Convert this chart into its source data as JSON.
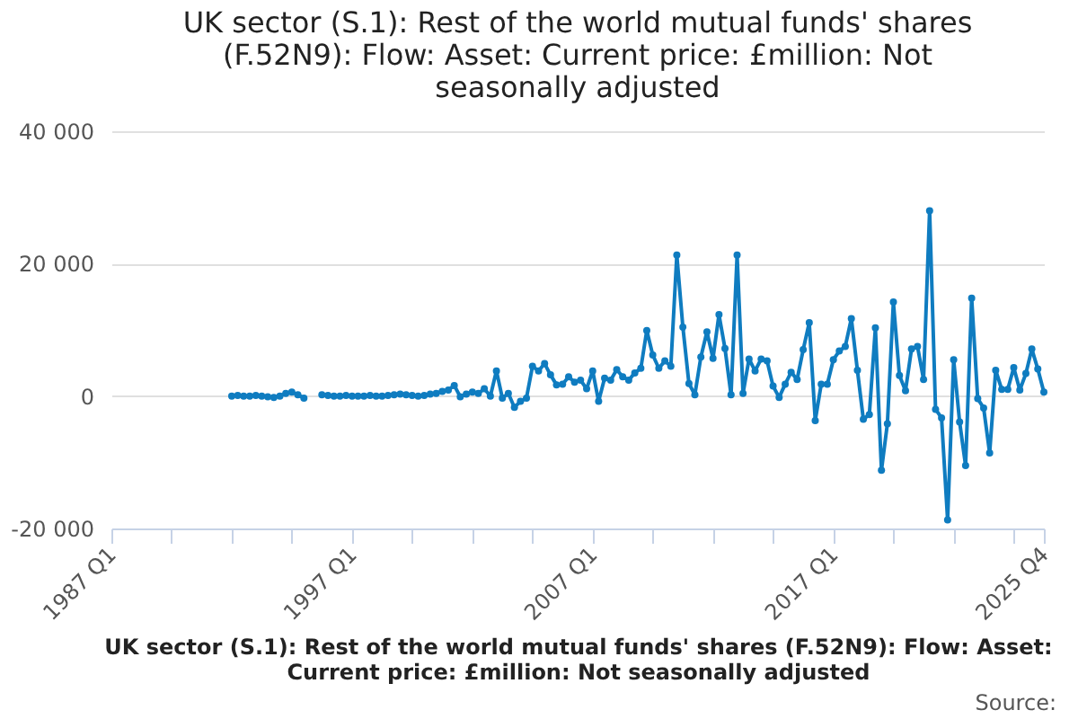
{
  "chart_data": {
    "type": "line",
    "title": "UK sector (S.1): Rest of the world mutual funds' shares (F.52N9): Flow: Asset: Current price: £million: Not seasonally adjusted",
    "xlabel": "UK sector (S.1): Rest of the world mutual funds' shares (F.52N9): Flow: Asset: Current price: £million: Not seasonally adjusted",
    "annotations": [
      "Source:"
    ],
    "x": [
      "1992-01",
      "1992-04",
      "1992-07",
      "1992-10",
      "1993-01",
      "1993-04",
      "1993-07",
      "1993-10",
      "1994-01",
      "1994-04",
      "1994-07",
      "1994-10",
      "1995-01",
      "1995-04",
      "1995-07",
      "1995-10",
      "1996-01",
      "1996-04",
      "1996-07",
      "1996-10",
      "1997-01",
      "1997-04",
      "1997-07",
      "1997-10",
      "1998-01",
      "1998-04",
      "1998-07",
      "1998-10",
      "1999-01",
      "1999-04",
      "1999-07",
      "1999-10",
      "2000-01",
      "2000-04",
      "2000-07",
      "2000-10",
      "2001-01",
      "2001-04",
      "2001-07",
      "2001-10",
      "2002-01",
      "2002-04",
      "2002-07",
      "2002-10",
      "2003-01",
      "2003-04",
      "2003-07",
      "2003-10",
      "2004-01",
      "2004-04",
      "2004-07",
      "2004-10",
      "2005-01",
      "2005-04",
      "2005-07",
      "2005-10",
      "2006-01",
      "2006-04",
      "2006-07",
      "2006-10",
      "2007-01",
      "2007-04",
      "2007-07",
      "2007-10",
      "2008-01",
      "2008-04",
      "2008-07",
      "2008-10",
      "2009-01",
      "2009-04",
      "2009-07",
      "2009-10",
      "2010-01",
      "2010-04",
      "2010-07",
      "2010-10",
      "2011-01",
      "2011-04",
      "2011-07",
      "2011-10",
      "2012-01",
      "2012-04",
      "2012-07",
      "2012-10",
      "2013-01",
      "2013-04",
      "2013-07",
      "2013-10",
      "2014-01",
      "2014-04",
      "2014-07",
      "2014-10",
      "2015-01",
      "2015-04",
      "2015-07",
      "2015-10",
      "2016-01",
      "2016-04",
      "2016-07",
      "2016-10",
      "2017-01",
      "2017-04",
      "2017-07",
      "2017-10",
      "2018-01",
      "2018-04",
      "2018-07",
      "2018-10",
      "2019-01",
      "2019-04",
      "2019-07",
      "2019-10",
      "2020-01",
      "2020-04",
      "2020-07",
      "2020-10",
      "2021-01",
      "2021-04",
      "2021-07",
      "2021-10",
      "2022-01",
      "2022-04",
      "2022-07",
      "2022-10",
      "2023-01",
      "2023-04",
      "2023-07",
      "2023-10",
      "2024-01",
      "2024-04",
      "2024-07",
      "2024-10",
      "2025-01",
      "2025-04",
      "2025-07",
      "2025-10"
    ],
    "values": [
      0,
      100,
      0,
      0,
      100,
      0,
      -100,
      -200,
      0,
      400,
      600,
      200,
      -300,
      null,
      null,
      200,
      100,
      0,
      0,
      100,
      0,
      0,
      0,
      100,
      0,
      0,
      100,
      200,
      300,
      200,
      100,
      0,
      100,
      300,
      400,
      700,
      900,
      1600,
      -100,
      300,
      600,
      400,
      1100,
      0,
      3800,
      -300,
      400,
      -1700,
      -800,
      -300,
      4500,
      3800,
      4900,
      3200,
      1700,
      1800,
      2900,
      2100,
      2400,
      1100,
      3800,
      -800,
      2700,
      2400,
      4000,
      2900,
      2400,
      3500,
      4200,
      9900,
      6200,
      4200,
      5300,
      4500,
      21300,
      10400,
      1900,
      200,
      5900,
      9700,
      5700,
      12300,
      7200,
      200,
      21300,
      400,
      5600,
      3800,
      5600,
      5300,
      1500,
      -200,
      1800,
      3600,
      2500,
      7000,
      11100,
      -3700,
      1800,
      1800,
      5500,
      6800,
      7500,
      11700,
      3900,
      -3500,
      -2800,
      10300,
      -11200,
      -4200,
      14200,
      3100,
      800,
      7100,
      7500,
      2500,
      28000,
      -2000,
      -3300,
      -18700,
      5500,
      -3900,
      -10500,
      14800,
      -400,
      -1800,
      -8600,
      3900,
      1000,
      1000,
      4300,
      900,
      3400,
      7100,
      4100,
      600
    ],
    "color": "#0f7cc0",
    "xlim": [
      "1987-01",
      "2025-10"
    ],
    "xticks": [
      {
        "value": "1987-01",
        "label": "1987 Q1"
      },
      {
        "value": "1989-07",
        "label": null
      },
      {
        "value": "1992-01",
        "label": null
      },
      {
        "value": "1994-07",
        "label": null
      },
      {
        "value": "1997-01",
        "label": "1997 Q1"
      },
      {
        "value": "1999-07",
        "label": null
      },
      {
        "value": "2002-01",
        "label": null
      },
      {
        "value": "2004-07",
        "label": null
      },
      {
        "value": "2007-01",
        "label": "2007 Q1"
      },
      {
        "value": "2009-07",
        "label": null
      },
      {
        "value": "2012-01",
        "label": null
      },
      {
        "value": "2014-07",
        "label": null
      },
      {
        "value": "2017-01",
        "label": "2017 Q1"
      },
      {
        "value": "2019-07",
        "label": null
      },
      {
        "value": "2022-01",
        "label": null
      },
      {
        "value": "2024-07",
        "label": null
      },
      {
        "value": "2025-10",
        "label": "2025 Q4"
      }
    ],
    "ylim": [
      -20000,
      40000
    ],
    "yticks": [
      {
        "value": -20000,
        "label": "-20 000"
      },
      {
        "value": 0,
        "label": "0"
      },
      {
        "value": 20000,
        "label": "20 000"
      },
      {
        "value": 40000,
        "label": "40 000"
      }
    ],
    "grid": "y",
    "marker": "circle",
    "line_style": "solid"
  }
}
